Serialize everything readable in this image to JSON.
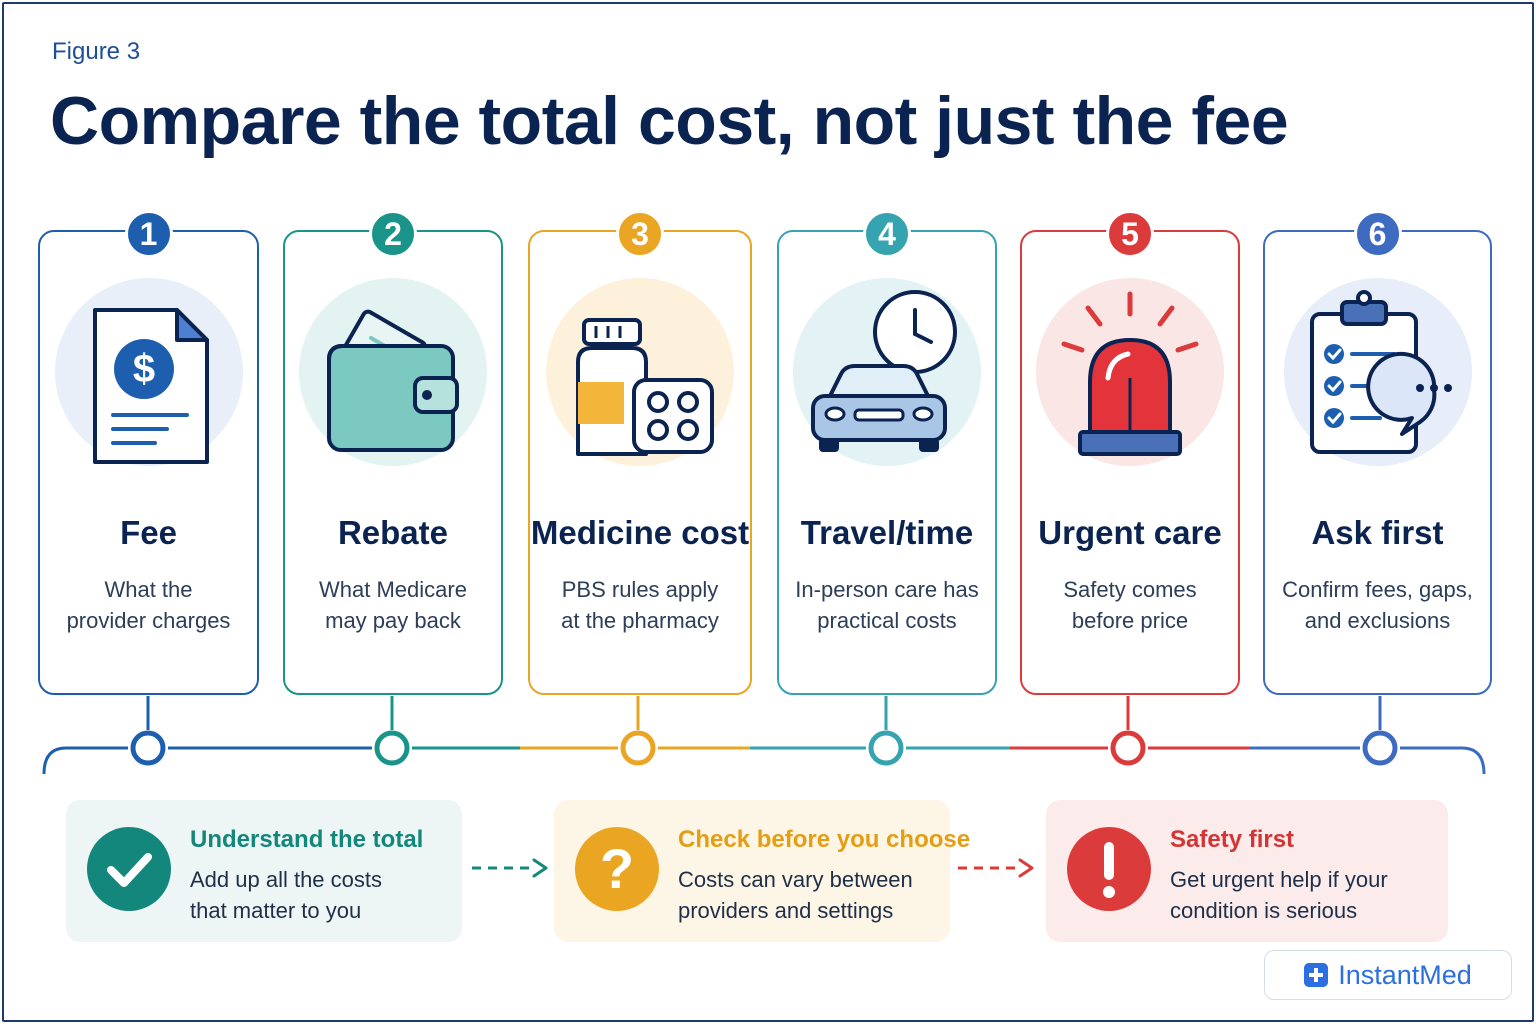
{
  "figure_label": "Figure 3",
  "title": "Compare the total cost, not just the fee",
  "colors": {
    "navy": "#0b2350",
    "blue": "#1d5fae",
    "teal": "#1a9488",
    "amber": "#eaa523",
    "cyan": "#36a3b0",
    "red": "#dc3b3b",
    "indigo": "#3d6bc2"
  },
  "cards": [
    {
      "number": "1",
      "title": "Fee",
      "line1": "What the",
      "line2": "provider charges",
      "icon": "invoice-dollar-icon"
    },
    {
      "number": "2",
      "title": "Rebate",
      "line1": "What Medicare",
      "line2": "may pay back",
      "icon": "wallet-icon"
    },
    {
      "number": "3",
      "title": "Medicine cost",
      "line1": "PBS rules apply",
      "line2": "at the pharmacy",
      "icon": "medicine-bottle-icon"
    },
    {
      "number": "4",
      "title": "Travel/time",
      "line1": "In-person care has",
      "line2": "practical costs",
      "icon": "car-clock-icon"
    },
    {
      "number": "5",
      "title": "Urgent care",
      "line1": "Safety comes",
      "line2": "before price",
      "icon": "siren-icon"
    },
    {
      "number": "6",
      "title": "Ask first",
      "line1": "Confirm fees, gaps,",
      "line2": "and exclusions",
      "icon": "clipboard-chat-icon"
    }
  ],
  "panels": [
    {
      "title": "Understand the total",
      "line1": "Add up all the costs",
      "line2": "that matter to you",
      "icon": "checkmark-icon"
    },
    {
      "title": "Check before you choose",
      "line1": "Costs can vary between",
      "line2": "providers and settings",
      "icon": "question-icon"
    },
    {
      "title": "Safety first",
      "line1": "Get urgent help if your",
      "line2": "condition is serious",
      "icon": "exclamation-icon"
    }
  ],
  "brand": {
    "name": "InstantMed",
    "icon": "medical-cross-icon"
  }
}
